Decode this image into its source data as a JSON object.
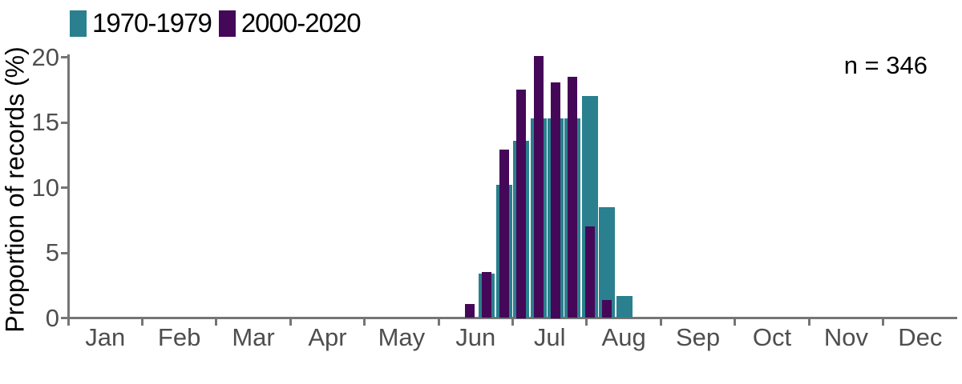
{
  "legend": {
    "items": [
      {
        "label": "1970-1979",
        "color": "#2A808E"
      },
      {
        "label": "2000-2020",
        "color": "#450858"
      }
    ]
  },
  "annotation": {
    "n_label": "n = 346"
  },
  "chart_data": {
    "type": "bar",
    "title": "",
    "xlabel": "",
    "ylabel": "Proportion of records (%)",
    "ylim": [
      0,
      20
    ],
    "yticks": [
      0,
      5,
      10,
      15,
      20
    ],
    "categories": [
      "Jan",
      "Feb",
      "Mar",
      "Apr",
      "May",
      "Jun",
      "Jul",
      "Aug",
      "Sep",
      "Oct",
      "Nov",
      "Dec"
    ],
    "bin_unit": "week",
    "bins_note": "10 weekly bins spanning roughly mid-June to mid-August; values read from axis, bars overlaid (wide teal behind, narrow purple in front)",
    "series": [
      {
        "name": "1970-1979",
        "color": "#2A808E",
        "values": [
          0,
          3.4,
          10.2,
          13.6,
          15.3,
          15.3,
          15.3,
          17.0,
          8.5,
          1.7
        ]
      },
      {
        "name": "2000-2020",
        "color": "#450858",
        "values": [
          1.1,
          3.5,
          12.9,
          17.5,
          20.1,
          18.1,
          18.5,
          7.0,
          1.4,
          0
        ]
      }
    ],
    "sample_size_label": "n = 346",
    "legend_position": "top-left",
    "grid": false,
    "axis_color": "#757575",
    "tick_label_color": "#4e4e4e"
  }
}
